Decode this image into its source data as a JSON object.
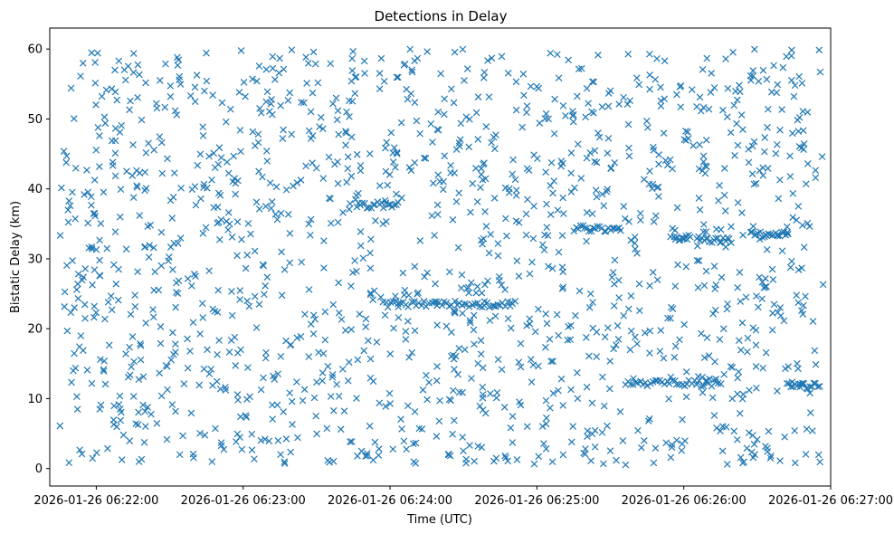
{
  "chart_data": {
    "type": "scatter",
    "title": "Detections in Delay",
    "xlabel": "Time (UTC)",
    "ylabel": "Bistatic Delay (km)",
    "x_ticks": [
      "2026-01-26 06:22:00",
      "2026-01-26 06:23:00",
      "2026-01-26 06:24:00",
      "2026-01-26 06:25:00",
      "2026-01-26 06:26:00",
      "2026-01-26 06:27:00"
    ],
    "xlim": [
      "2026-01-26 06:21:41",
      "2026-01-26 06:27:00"
    ],
    "y_ticks": [
      "0",
      "10",
      "20",
      "30",
      "40",
      "50",
      "60"
    ],
    "ylim": [
      -2.5,
      63
    ],
    "marker": "x",
    "color": "#1f77b4",
    "grid": false,
    "series": [
      {
        "time_range": [
          "2026-01-26 06:21:45",
          "2026-01-26 06:26:57"
        ],
        "delay_range_km": [
          0.5,
          60
        ],
        "approx_point_count": 1700,
        "note_clusters": [
          {
            "time_range": [
              "2026-01-26 06:23:46",
              "2026-01-26 06:24:04"
            ],
            "delay_km": 37.7
          },
          {
            "time_range": [
              "2026-01-26 06:23:57",
              "2026-01-26 06:24:52"
            ],
            "delay_km": 23.5
          },
          {
            "time_range": [
              "2026-01-26 06:25:15",
              "2026-01-26 06:25:35"
            ],
            "delay_km": 34.3
          },
          {
            "time_range": [
              "2026-01-26 06:25:56",
              "2026-01-26 06:26:03"
            ],
            "delay_km": 33.0
          },
          {
            "time_range": [
              "2026-01-26 06:26:05",
              "2026-01-26 06:26:20"
            ],
            "delay_km": 32.7
          },
          {
            "time_range": [
              "2026-01-26 06:26:27",
              "2026-01-26 06:26:43"
            ],
            "delay_km": 33.4
          },
          {
            "time_range": [
              "2026-01-26 06:25:36",
              "2026-01-26 06:26:16"
            ],
            "delay_km": 12.2
          },
          {
            "time_range": [
              "2026-01-26 06:26:42",
              "2026-01-26 06:26:56"
            ],
            "delay_km": 11.8
          }
        ]
      }
    ]
  }
}
